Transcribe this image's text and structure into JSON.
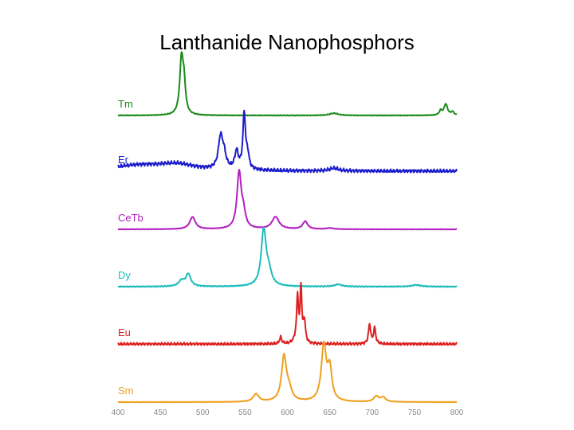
{
  "slide": {
    "title": "Lanthanide Nanophosphors"
  },
  "chart_data": {
    "type": "line",
    "xlabel": "",
    "ylabel": "",
    "xlim": [
      400,
      800
    ],
    "x_ticks": [
      400,
      450,
      500,
      550,
      600,
      650,
      700,
      750,
      800
    ],
    "x_tick_labels": [
      "400",
      "450",
      "500",
      "550",
      "600",
      "650",
      "700",
      "750",
      "800"
    ],
    "grid": false,
    "series": [
      {
        "name": "Tm",
        "color": "#1a8a1a",
        "peaks": [
          [
            475,
            1.0,
            2.5
          ],
          [
            478,
            0.45,
            2.0
          ],
          [
            655,
            0.04,
            6
          ],
          [
            787,
            0.2,
            2.5
          ],
          [
            781,
            0.08,
            2
          ],
          [
            795,
            0.06,
            2
          ]
        ],
        "ripple": 0.004
      },
      {
        "name": "Er",
        "color": "#1c1ccc",
        "peaks": [
          [
            425,
            0.1,
            40
          ],
          [
            470,
            0.1,
            25
          ],
          [
            521,
            0.55,
            3
          ],
          [
            525,
            0.25,
            3
          ],
          [
            540,
            0.32,
            2.5
          ],
          [
            549,
            1.0,
            1.8
          ],
          [
            553,
            0.25,
            2
          ],
          [
            655,
            0.05,
            6
          ]
        ],
        "ripple": 0.018
      },
      {
        "name": "CeTb",
        "color": "#b21fbf",
        "peaks": [
          [
            488,
            0.22,
            4
          ],
          [
            543,
            1.0,
            3
          ],
          [
            548,
            0.25,
            3
          ],
          [
            586,
            0.22,
            5
          ],
          [
            621,
            0.14,
            3.5
          ],
          [
            650,
            0.02,
            5
          ]
        ],
        "ripple": 0.003
      },
      {
        "name": "Dy",
        "color": "#1ebcbc",
        "peaks": [
          [
            483,
            0.22,
            3.5
          ],
          [
            475,
            0.1,
            4
          ],
          [
            572,
            1.0,
            3.5
          ],
          [
            578,
            0.22,
            4
          ],
          [
            660,
            0.04,
            5
          ],
          [
            752,
            0.03,
            6
          ]
        ],
        "ripple": 0.005
      },
      {
        "name": "Eu",
        "color": "#dd2020",
        "peaks": [
          [
            592,
            0.12,
            1.5
          ],
          [
            612,
            0.8,
            1.2
          ],
          [
            616,
            1.0,
            1.2
          ],
          [
            620,
            0.4,
            1.5
          ],
          [
            697,
            0.35,
            1.5
          ],
          [
            703,
            0.28,
            1.5
          ],
          [
            610,
            0.08,
            3
          ]
        ],
        "ripple": 0.014
      },
      {
        "name": "Sm",
        "color": "#eea020",
        "peaks": [
          [
            563,
            0.14,
            4
          ],
          [
            596,
            0.8,
            3.5
          ],
          [
            602,
            0.18,
            4
          ],
          [
            643,
            1.0,
            3.5
          ],
          [
            650,
            0.55,
            3
          ],
          [
            705,
            0.1,
            3.5
          ],
          [
            713,
            0.08,
            3.5
          ]
        ],
        "ripple": 0.003
      }
    ]
  }
}
